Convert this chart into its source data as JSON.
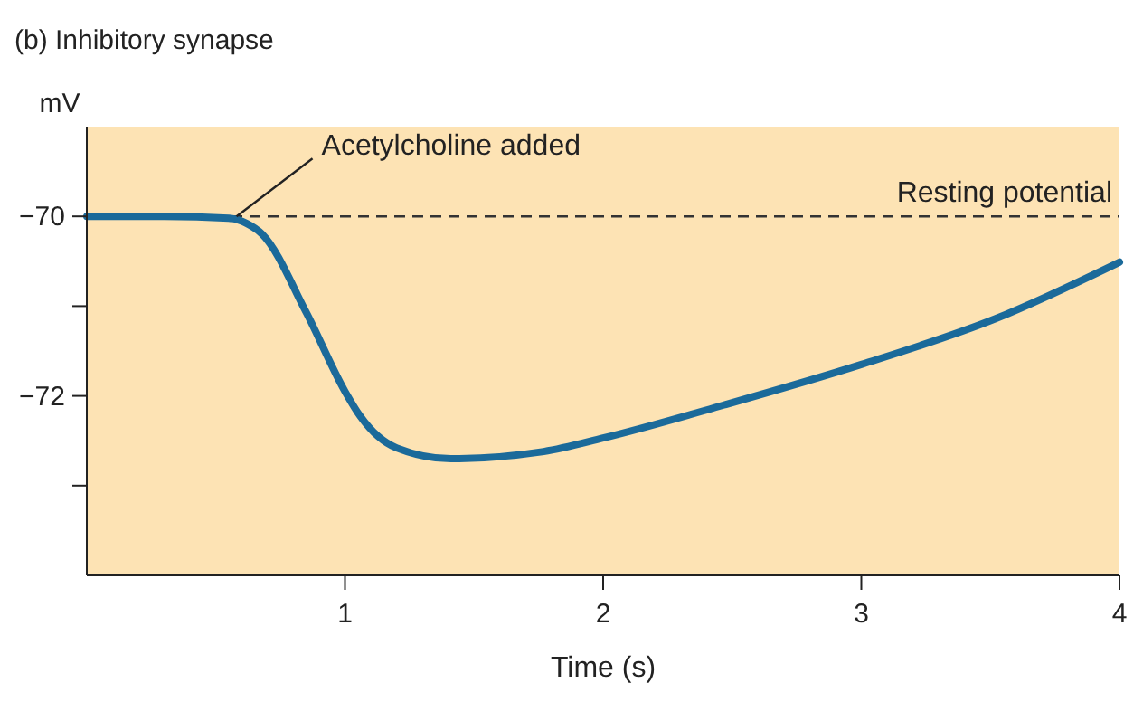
{
  "chart_data": {
    "type": "line",
    "title": "(b) Inhibitory synapse",
    "xlabel": "Time (s)",
    "ylabel": "mV",
    "x": [
      0,
      0.3,
      0.55,
      0.62,
      0.68,
      0.85,
      1.0,
      1.06,
      1.2,
      1.41,
      1.77,
      2.0,
      2.47,
      3.0,
      3.52,
      4.0
    ],
    "series": [
      {
        "color": "#1b6a9a",
        "values": [
          -70,
          -70,
          -70.02,
          -70.08,
          -70.2,
          -71.07,
          -71.95,
          -72.23,
          -72.58,
          -72.7,
          -72.62,
          -72.47,
          -72.1,
          -71.65,
          -71.14,
          -70.51
        ]
      }
    ],
    "xlim": [
      0,
      4
    ],
    "xticks": [
      1,
      2,
      3,
      4
    ],
    "ylim": [
      -74,
      -69
    ],
    "yticks": [
      {
        "value": -70,
        "label": "−70"
      },
      {
        "value": -71,
        "label": null
      },
      {
        "value": -72,
        "label": "−72"
      },
      {
        "value": -73,
        "label": null
      }
    ],
    "ref_lines": [
      {
        "axis": "y",
        "value": -70,
        "label": "Resting potential",
        "color": "#333333",
        "line_style": "dashed"
      }
    ],
    "annotations": [
      {
        "text": "Acetylcholine added",
        "x": 0.58,
        "y": -70
      }
    ],
    "grid": false,
    "marker": "none",
    "line_style": "solid"
  }
}
